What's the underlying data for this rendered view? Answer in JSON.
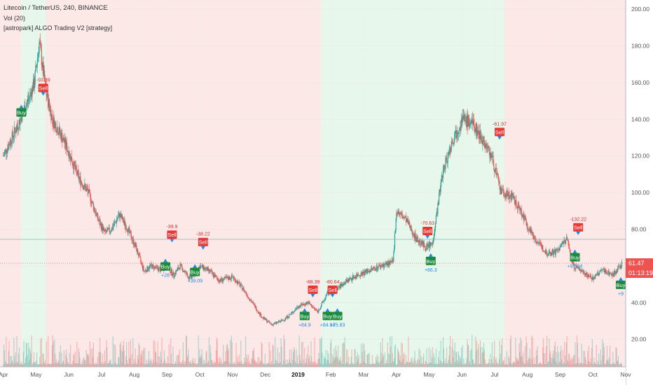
{
  "legend": {
    "title": "Litecoin / TetherUS, 240, BINANCE",
    "vol": "Vol (20)",
    "strategy": "[astropark] ALGO Trading V2 [strategy]"
  },
  "colors": {
    "bull_zone": "#e8f7ec",
    "bear_zone": "#fde8e8",
    "candle_up": "#26a69a",
    "candle_down": "#ef5350",
    "buy": "#1b8a3a",
    "sell": "#e53935",
    "price_line": "#ef5350"
  },
  "price_tag": {
    "value": "61.47",
    "timer": "01:13:19"
  },
  "chart_data": {
    "type": "candlestick",
    "series_name": "Litecoin / TetherUS",
    "ylim": [
      5,
      205
    ],
    "y_ticks": [
      "20.00",
      "40.00",
      "60.00",
      "80.00",
      "100.00",
      "120.00",
      "140.00",
      "160.00",
      "180.00",
      "200.00"
    ],
    "x_ticks": [
      "Apr",
      "May",
      "Jun",
      "Jul",
      "Aug",
      "Sep",
      "Oct",
      "Nov",
      "Dec",
      "2019",
      "Feb",
      "Mar",
      "Apr",
      "May",
      "Jun",
      "Jul",
      "Aug",
      "Sep",
      "Oct",
      "Nov"
    ],
    "x_tick_months": [
      0,
      1,
      2,
      3,
      4,
      5,
      6,
      7,
      8,
      9,
      10,
      11,
      12,
      13,
      14,
      15,
      16,
      17,
      18,
      19
    ],
    "xlim": [
      -0.1,
      19.0
    ],
    "last_price": 61.47,
    "price_path": [
      [
        0.0,
        120
      ],
      [
        0.4,
        135
      ],
      [
        0.75,
        150
      ],
      [
        0.95,
        160
      ],
      [
        1.1,
        182
      ],
      [
        1.3,
        155
      ],
      [
        1.5,
        140
      ],
      [
        1.8,
        130
      ],
      [
        2.0,
        122
      ],
      [
        2.3,
        108
      ],
      [
        2.6,
        100
      ],
      [
        2.9,
        85
      ],
      [
        3.1,
        78
      ],
      [
        3.3,
        80
      ],
      [
        3.55,
        88
      ],
      [
        3.8,
        80
      ],
      [
        4.05,
        70
      ],
      [
        4.3,
        57
      ],
      [
        4.5,
        60
      ],
      [
        4.8,
        58
      ],
      [
        5.0,
        60
      ],
      [
        5.2,
        55
      ],
      [
        5.4,
        60
      ],
      [
        5.7,
        53
      ],
      [
        6.0,
        60
      ],
      [
        6.3,
        57
      ],
      [
        6.6,
        52
      ],
      [
        7.0,
        54
      ],
      [
        7.3,
        48
      ],
      [
        7.6,
        40
      ],
      [
        7.9,
        32
      ],
      [
        8.2,
        28
      ],
      [
        8.5,
        30
      ],
      [
        8.8,
        34
      ],
      [
        9.0,
        38
      ],
      [
        9.3,
        40
      ],
      [
        9.6,
        35
      ],
      [
        9.9,
        45
      ],
      [
        10.2,
        48
      ],
      [
        10.5,
        52
      ],
      [
        10.8,
        55
      ],
      [
        11.1,
        57
      ],
      [
        11.5,
        60
      ],
      [
        11.9,
        62
      ],
      [
        12.0,
        90
      ],
      [
        12.3,
        85
      ],
      [
        12.6,
        75
      ],
      [
        12.9,
        70
      ],
      [
        13.1,
        72
      ],
      [
        13.4,
        110
      ],
      [
        13.7,
        128
      ],
      [
        14.0,
        140
      ],
      [
        14.3,
        138
      ],
      [
        14.6,
        130
      ],
      [
        14.9,
        120
      ],
      [
        15.2,
        100
      ],
      [
        15.5,
        98
      ],
      [
        15.8,
        90
      ],
      [
        16.0,
        82
      ],
      [
        16.3,
        73
      ],
      [
        16.6,
        67
      ],
      [
        16.9,
        68
      ],
      [
        17.2,
        75
      ],
      [
        17.4,
        60
      ],
      [
        17.7,
        57
      ],
      [
        18.0,
        53
      ],
      [
        18.3,
        58
      ],
      [
        18.6,
        55
      ],
      [
        18.9,
        61.47
      ]
    ],
    "zones": [
      {
        "type": "bear",
        "x0": -0.1,
        "x1": 0.55
      },
      {
        "type": "bull",
        "x0": 0.55,
        "x1": 1.3
      },
      {
        "type": "bear",
        "x0": 1.3,
        "x1": 9.7
      },
      {
        "type": "bull",
        "x0": 9.7,
        "x1": 15.3
      },
      {
        "type": "bear",
        "x0": 15.3,
        "x1": 19.0
      }
    ],
    "signals": [
      {
        "type": "buy",
        "label": "Buy",
        "x": 0.55,
        "y": 146,
        "pnl": ""
      },
      {
        "type": "sell",
        "label": "Sell",
        "x": 1.22,
        "y": 154,
        "pnl": "-93.39"
      },
      {
        "type": "buy",
        "label": "Buy",
        "x": 4.95,
        "y": 62,
        "pnl": "+28"
      },
      {
        "type": "sell",
        "label": "Sell",
        "x": 5.15,
        "y": 74,
        "pnl": "-39.9"
      },
      {
        "type": "buy",
        "label": "Buy",
        "x": 5.85,
        "y": 59,
        "pnl": "+39.09"
      },
      {
        "type": "sell",
        "label": "Sell",
        "x": 6.1,
        "y": 70,
        "pnl": "-38.22"
      },
      {
        "type": "buy",
        "label": "Buy",
        "x": 9.2,
        "y": 35,
        "pnl": "+84.9"
      },
      {
        "type": "sell",
        "label": "Sell",
        "x": 9.45,
        "y": 44,
        "pnl": "-88.39"
      },
      {
        "type": "buy",
        "label": "Buy",
        "x": 9.9,
        "y": 35,
        "pnl": "+84.94"
      },
      {
        "type": "buy",
        "label": "Buy",
        "x": 10.2,
        "y": 35,
        "pnl": "+75.83"
      },
      {
        "type": "sell",
        "label": "Sell",
        "x": 10.05,
        "y": 44,
        "pnl": "-80.64"
      },
      {
        "type": "sell",
        "label": "Sell",
        "x": 12.95,
        "y": 76,
        "pnl": "-70.63"
      },
      {
        "type": "buy",
        "label": "Buy",
        "x": 13.05,
        "y": 65,
        "pnl": "+66.3"
      },
      {
        "type": "sell",
        "label": "Sell",
        "x": 15.15,
        "y": 130,
        "pnl": "-61.97"
      },
      {
        "type": "sell",
        "label": "Sell",
        "x": 17.55,
        "y": 78,
        "pnl": "-132.22"
      },
      {
        "type": "buy",
        "label": "Buy",
        "x": 17.45,
        "y": 67,
        "pnl": "+97.94"
      },
      {
        "type": "buy",
        "label": "Buy",
        "x": 18.85,
        "y": 52,
        "pnl": "+9"
      }
    ]
  }
}
